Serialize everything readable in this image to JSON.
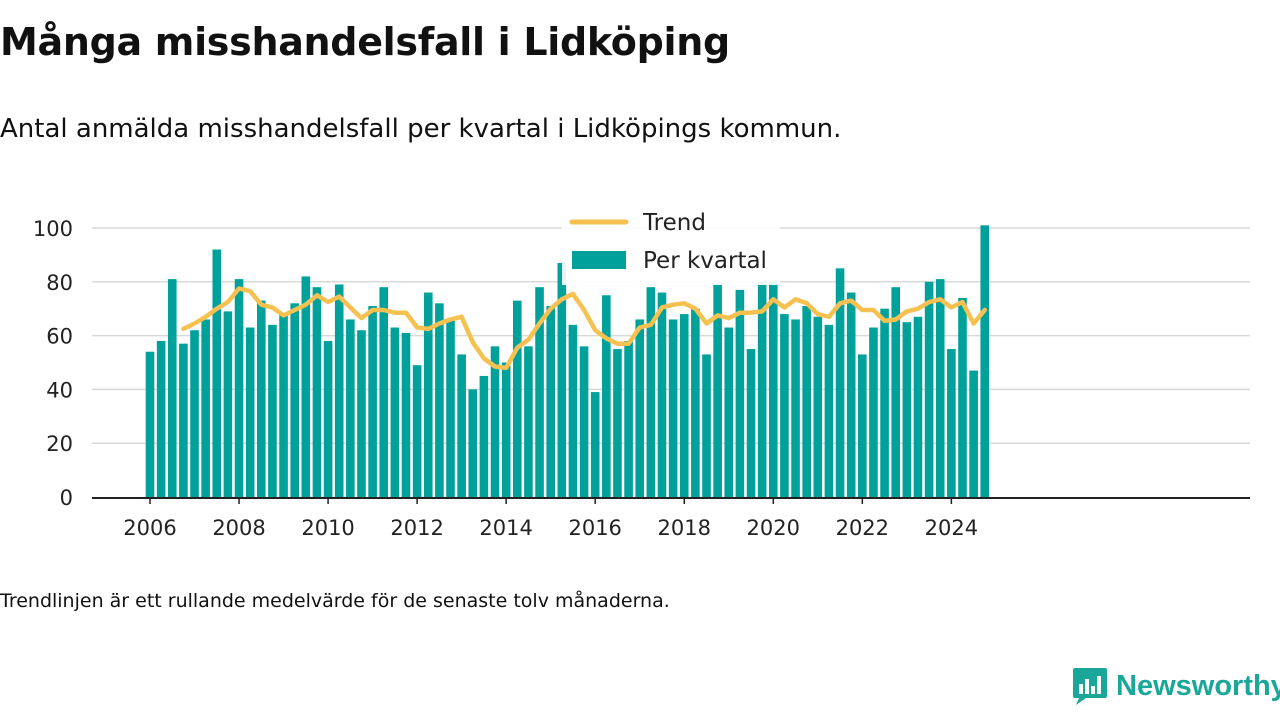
{
  "title": "Många misshandelsfall i Lidköping",
  "subtitle": "Antal anmälda misshandelsfall per kvartal i Lidköpings kommun.",
  "footnote": "Trendlinjen är ett rullande medelvärde för de senaste tolv månaderna.",
  "brand": "Newsworthy",
  "colors": {
    "bar": "#00a19a",
    "trend": "#f6c151",
    "grid": "#d9d9d9",
    "axis": "#222222",
    "brand": "#1aa79a"
  },
  "chart_data": {
    "type": "bar",
    "title": "",
    "xlabel": "",
    "ylabel": "",
    "ylim": [
      0,
      100
    ],
    "yticks": [
      0,
      20,
      40,
      60,
      80,
      100
    ],
    "xticks": [
      "2006",
      "2008",
      "2010",
      "2012",
      "2014",
      "2016",
      "2018",
      "2020",
      "2022",
      "2024"
    ],
    "grid": true,
    "legend_position": "top-center",
    "categories": [
      "2006 Q1",
      "2006 Q2",
      "2006 Q3",
      "2006 Q4",
      "2007 Q1",
      "2007 Q2",
      "2007 Q3",
      "2007 Q4",
      "2008 Q1",
      "2008 Q2",
      "2008 Q3",
      "2008 Q4",
      "2009 Q1",
      "2009 Q2",
      "2009 Q3",
      "2009 Q4",
      "2010 Q1",
      "2010 Q2",
      "2010 Q3",
      "2010 Q4",
      "2011 Q1",
      "2011 Q2",
      "2011 Q3",
      "2011 Q4",
      "2012 Q1",
      "2012 Q2",
      "2012 Q3",
      "2012 Q4",
      "2013 Q1",
      "2013 Q2",
      "2013 Q3",
      "2013 Q4",
      "2014 Q1",
      "2014 Q2",
      "2014 Q3",
      "2014 Q4",
      "2015 Q1",
      "2015 Q2",
      "2015 Q3",
      "2015 Q4",
      "2016 Q1",
      "2016 Q2",
      "2016 Q3",
      "2016 Q4",
      "2017 Q1",
      "2017 Q2",
      "2017 Q3",
      "2017 Q4",
      "2018 Q1",
      "2018 Q2",
      "2018 Q3",
      "2018 Q4",
      "2019 Q1",
      "2019 Q2",
      "2019 Q3",
      "2019 Q4",
      "2020 Q1",
      "2020 Q2",
      "2020 Q3",
      "2020 Q4",
      "2021 Q1",
      "2021 Q2",
      "2021 Q3",
      "2021 Q4",
      "2022 Q1",
      "2022 Q2",
      "2022 Q3",
      "2022 Q4",
      "2023 Q1",
      "2023 Q2",
      "2023 Q3",
      "2023 Q4",
      "2024 Q1",
      "2024 Q2",
      "2024 Q3",
      "2024 Q4"
    ],
    "series": [
      {
        "name": "Per kvartal",
        "type": "bar",
        "values": [
          54,
          58,
          81,
          57,
          62,
          66,
          92,
          69,
          81,
          63,
          73,
          64,
          68,
          72,
          82,
          78,
          58,
          79,
          66,
          62,
          71,
          78,
          63,
          61,
          49,
          76,
          72,
          66,
          53,
          40,
          45,
          56,
          50,
          73,
          56,
          78,
          71,
          87,
          64,
          56,
          39,
          75,
          55,
          58,
          66,
          78,
          76,
          66,
          68,
          70,
          53,
          79,
          63,
          77,
          55,
          80,
          80,
          68,
          66,
          71,
          67,
          64,
          85,
          76,
          53,
          63,
          70,
          78,
          65,
          67,
          80,
          81,
          55,
          74,
          47,
          101
        ]
      },
      {
        "name": "Trend",
        "type": "line",
        "values": [
          null,
          null,
          null,
          62.5,
          64.5,
          67,
          70,
          72.5,
          77.5,
          76.5,
          71.5,
          70.5,
          67.5,
          69.5,
          71.5,
          75,
          72.5,
          74.5,
          70.5,
          66.5,
          69.5,
          69.5,
          68.5,
          68.5,
          63,
          62.5,
          64.5,
          66,
          67,
          57.5,
          51.5,
          48.5,
          48,
          55.5,
          58.5,
          64.5,
          70,
          73.5,
          75.5,
          69.5,
          62,
          59,
          57,
          57,
          63,
          64,
          70.5,
          71.5,
          72,
          70,
          64.5,
          67.5,
          66.5,
          68.5,
          68.5,
          69,
          73.5,
          70.5,
          73.5,
          72,
          68,
          67,
          72,
          73,
          69.5,
          69.5,
          65.5,
          66,
          69,
          70,
          72.5,
          73.5,
          70.5,
          72.5,
          64.5,
          69.5
        ]
      }
    ]
  }
}
